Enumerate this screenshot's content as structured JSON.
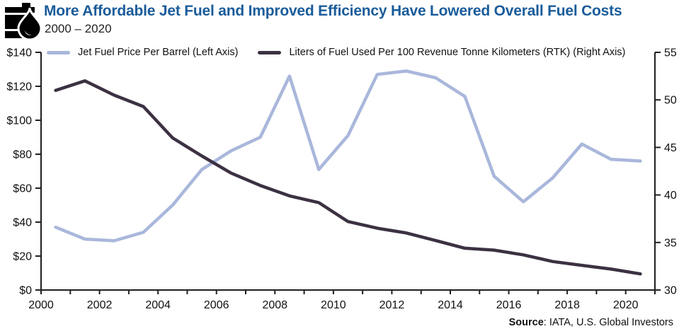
{
  "header": {
    "title": "More Affordable Jet Fuel and Improved Efficiency Have Lowered Overall Fuel Costs",
    "subtitle": "2000 – 2020",
    "title_color": "#1A5C9A",
    "icon": "oil-barrel-with-droplet-icon"
  },
  "legend": {
    "item1": {
      "label": "Jet Fuel Price Per Barrel (Left Axis)",
      "color": "#A9B7DB"
    },
    "item2": {
      "label": "Liters of Fuel Used Per 100 Revenue Tonne Kilometers (RTK) (Right Axis)",
      "color": "#3C3142"
    }
  },
  "source": {
    "prefix": "Source",
    "rest": ": IATA, U.S. Global Investors"
  },
  "chart_data": {
    "type": "line",
    "x": [
      2000,
      2001,
      2002,
      2003,
      2004,
      2005,
      2006,
      2007,
      2008,
      2009,
      2010,
      2011,
      2012,
      2013,
      2014,
      2015,
      2016,
      2017,
      2018,
      2019,
      2020
    ],
    "x_tick_labels": [
      "2000",
      "2002",
      "2004",
      "2006",
      "2008",
      "2010",
      "2012",
      "2014",
      "2016",
      "2018",
      "2020"
    ],
    "series": [
      {
        "name": "Jet Fuel Price Per Barrel",
        "axis": "left",
        "color": "#A9B7DB",
        "values": [
          37,
          30,
          29,
          34,
          50,
          71,
          82,
          90,
          126,
          71,
          91,
          127,
          129,
          125,
          114,
          67,
          52,
          66,
          86,
          77,
          76
        ]
      },
      {
        "name": "Liters of Fuel Used Per 100 Revenue Tonne Kilometers (RTK)",
        "axis": "right",
        "color": "#3C3142",
        "values": [
          51,
          52,
          50.5,
          49.3,
          46,
          44.1,
          42.3,
          41,
          39.9,
          39.2,
          37.2,
          36.5,
          36,
          35.2,
          34.4,
          34.2,
          33.7,
          33,
          32.6,
          32.2,
          31.7
        ]
      }
    ],
    "left_axis": {
      "min": 0,
      "max": 140,
      "tick_labels": [
        "$140",
        "$120",
        "$100",
        "$80",
        "$60",
        "$40",
        "$20",
        "$0"
      ]
    },
    "right_axis": {
      "min": 30,
      "max": 55,
      "tick_labels": [
        "55",
        "50",
        "45",
        "40",
        "35",
        "30"
      ]
    },
    "grid": false,
    "legend_position": "top-inside",
    "title": "More Affordable Jet Fuel and Improved Efficiency Have Lowered Overall Fuel Costs 2000 – 2020"
  }
}
